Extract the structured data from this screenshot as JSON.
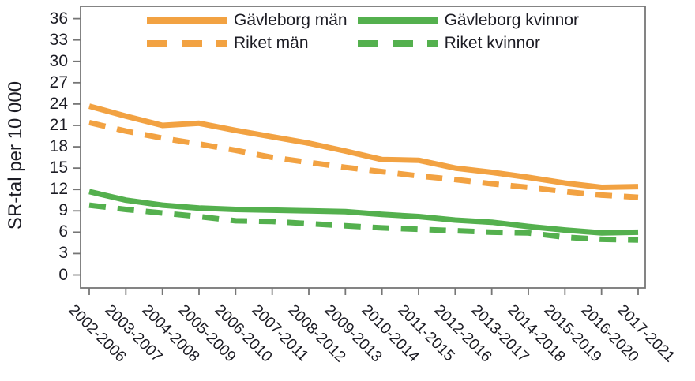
{
  "chart_data": {
    "type": "line",
    "title": "",
    "ylabel": "SR-tal per 10 000",
    "xlabel": "",
    "grid": false,
    "legend_position": "top-inside-two-columns",
    "axis_color": "#767676",
    "text_color": "#1c1c24",
    "yticks": [
      0,
      3,
      6,
      9,
      12,
      15,
      18,
      21,
      24,
      27,
      30,
      33,
      36
    ],
    "ylim": [
      -1.8,
      37.8
    ],
    "categories": [
      "2002-2006",
      "2003-2007",
      "2004-2008",
      "2005-2009",
      "2006-2010",
      "2007-2011",
      "2008-2012",
      "2009-2013",
      "2010-2014",
      "2011-2015",
      "2012-2016",
      "2013-2017",
      "2014-2018",
      "2015-2019",
      "2016-2020",
      "2017-2021"
    ],
    "series": [
      {
        "name": "Gävleborg män",
        "style": "solid",
        "color": "#F2A242",
        "values": [
          23.7,
          22.3,
          21.0,
          21.3,
          20.3,
          19.4,
          18.5,
          17.4,
          16.2,
          16.1,
          15.0,
          14.4,
          13.7,
          12.9,
          12.3,
          12.4
        ]
      },
      {
        "name": "Riket män",
        "style": "dashed",
        "color": "#F2A242",
        "values": [
          21.4,
          20.2,
          19.2,
          18.4,
          17.5,
          16.5,
          15.8,
          15.1,
          14.5,
          13.9,
          13.4,
          12.8,
          12.3,
          11.7,
          11.2,
          10.9
        ]
      },
      {
        "name": "Gävleborg kvinnor",
        "style": "solid",
        "color": "#54B04E",
        "values": [
          11.7,
          10.5,
          9.8,
          9.4,
          9.2,
          9.1,
          9.0,
          8.9,
          8.5,
          8.2,
          7.7,
          7.4,
          6.8,
          6.3,
          5.9,
          6.0
        ]
      },
      {
        "name": "Riket kvinnor",
        "style": "dashed",
        "color": "#54B04E",
        "values": [
          9.8,
          9.2,
          8.7,
          8.2,
          7.6,
          7.5,
          7.2,
          6.9,
          6.6,
          6.4,
          6.2,
          6.0,
          5.9,
          5.3,
          5.0,
          4.9
        ]
      }
    ]
  }
}
